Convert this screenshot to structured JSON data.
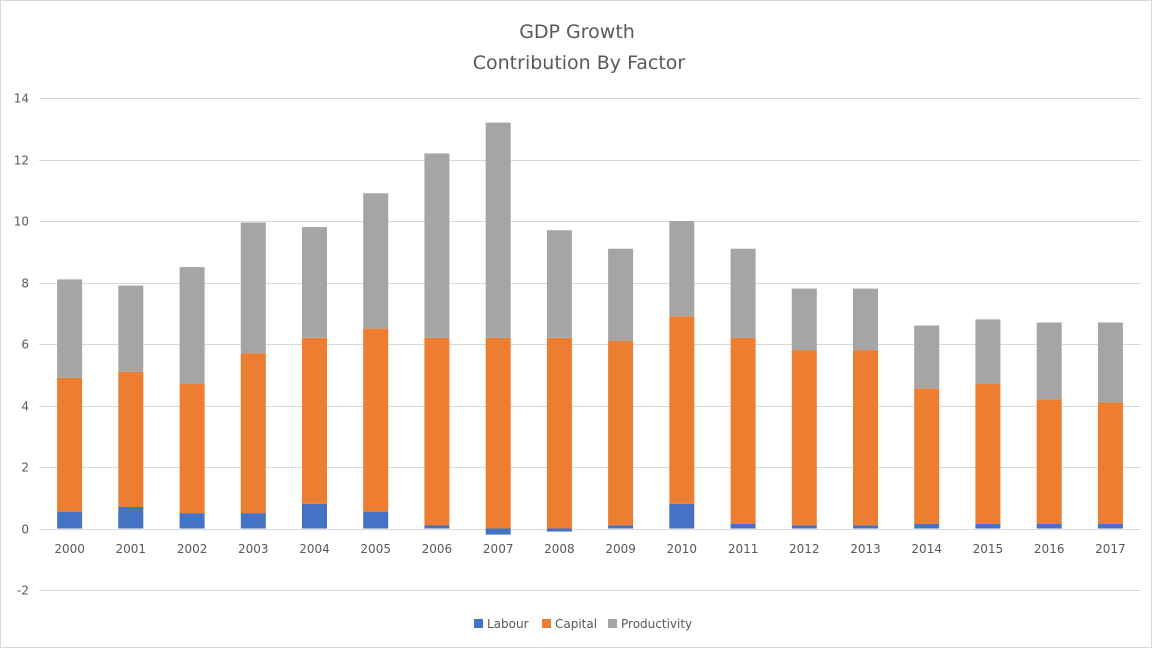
{
  "chart_data": {
    "type": "bar",
    "stacked": true,
    "title": [
      "GDP Growth",
      "Contribution By Factor"
    ],
    "xlabel": "",
    "ylabel": "",
    "ylim": [
      -2,
      14
    ],
    "yticks": [
      -2,
      0,
      2,
      4,
      6,
      8,
      10,
      12,
      14
    ],
    "grid": true,
    "legend_position": "bottom",
    "categories": [
      "2000",
      "2001",
      "2002",
      "2003",
      "2004",
      "2005",
      "2006",
      "2007",
      "2008",
      "2009",
      "2010",
      "2011",
      "2012",
      "2013",
      "2014",
      "2015",
      "2016",
      "2017"
    ],
    "series": [
      {
        "name": "Labour",
        "color": "#4472c4",
        "values": [
          0.55,
          0.7,
          0.5,
          0.5,
          0.8,
          0.55,
          0.1,
          -0.2,
          -0.1,
          0.1,
          0.8,
          0.15,
          0.1,
          0.1,
          0.15,
          0.15,
          0.15,
          0.15
        ]
      },
      {
        "name": "Capital",
        "color": "#ed7d31",
        "values": [
          4.35,
          4.4,
          4.2,
          5.2,
          5.4,
          5.95,
          6.1,
          6.2,
          6.2,
          6.0,
          6.1,
          6.05,
          5.7,
          5.7,
          4.4,
          4.55,
          4.05,
          3.95
        ]
      },
      {
        "name": "Productivity",
        "color": "#a5a5a5",
        "values": [
          3.2,
          2.8,
          3.8,
          4.25,
          3.6,
          4.4,
          6.0,
          7.0,
          3.5,
          3.0,
          3.1,
          2.9,
          2.0,
          2.0,
          2.05,
          2.1,
          2.5,
          2.6
        ]
      }
    ]
  }
}
